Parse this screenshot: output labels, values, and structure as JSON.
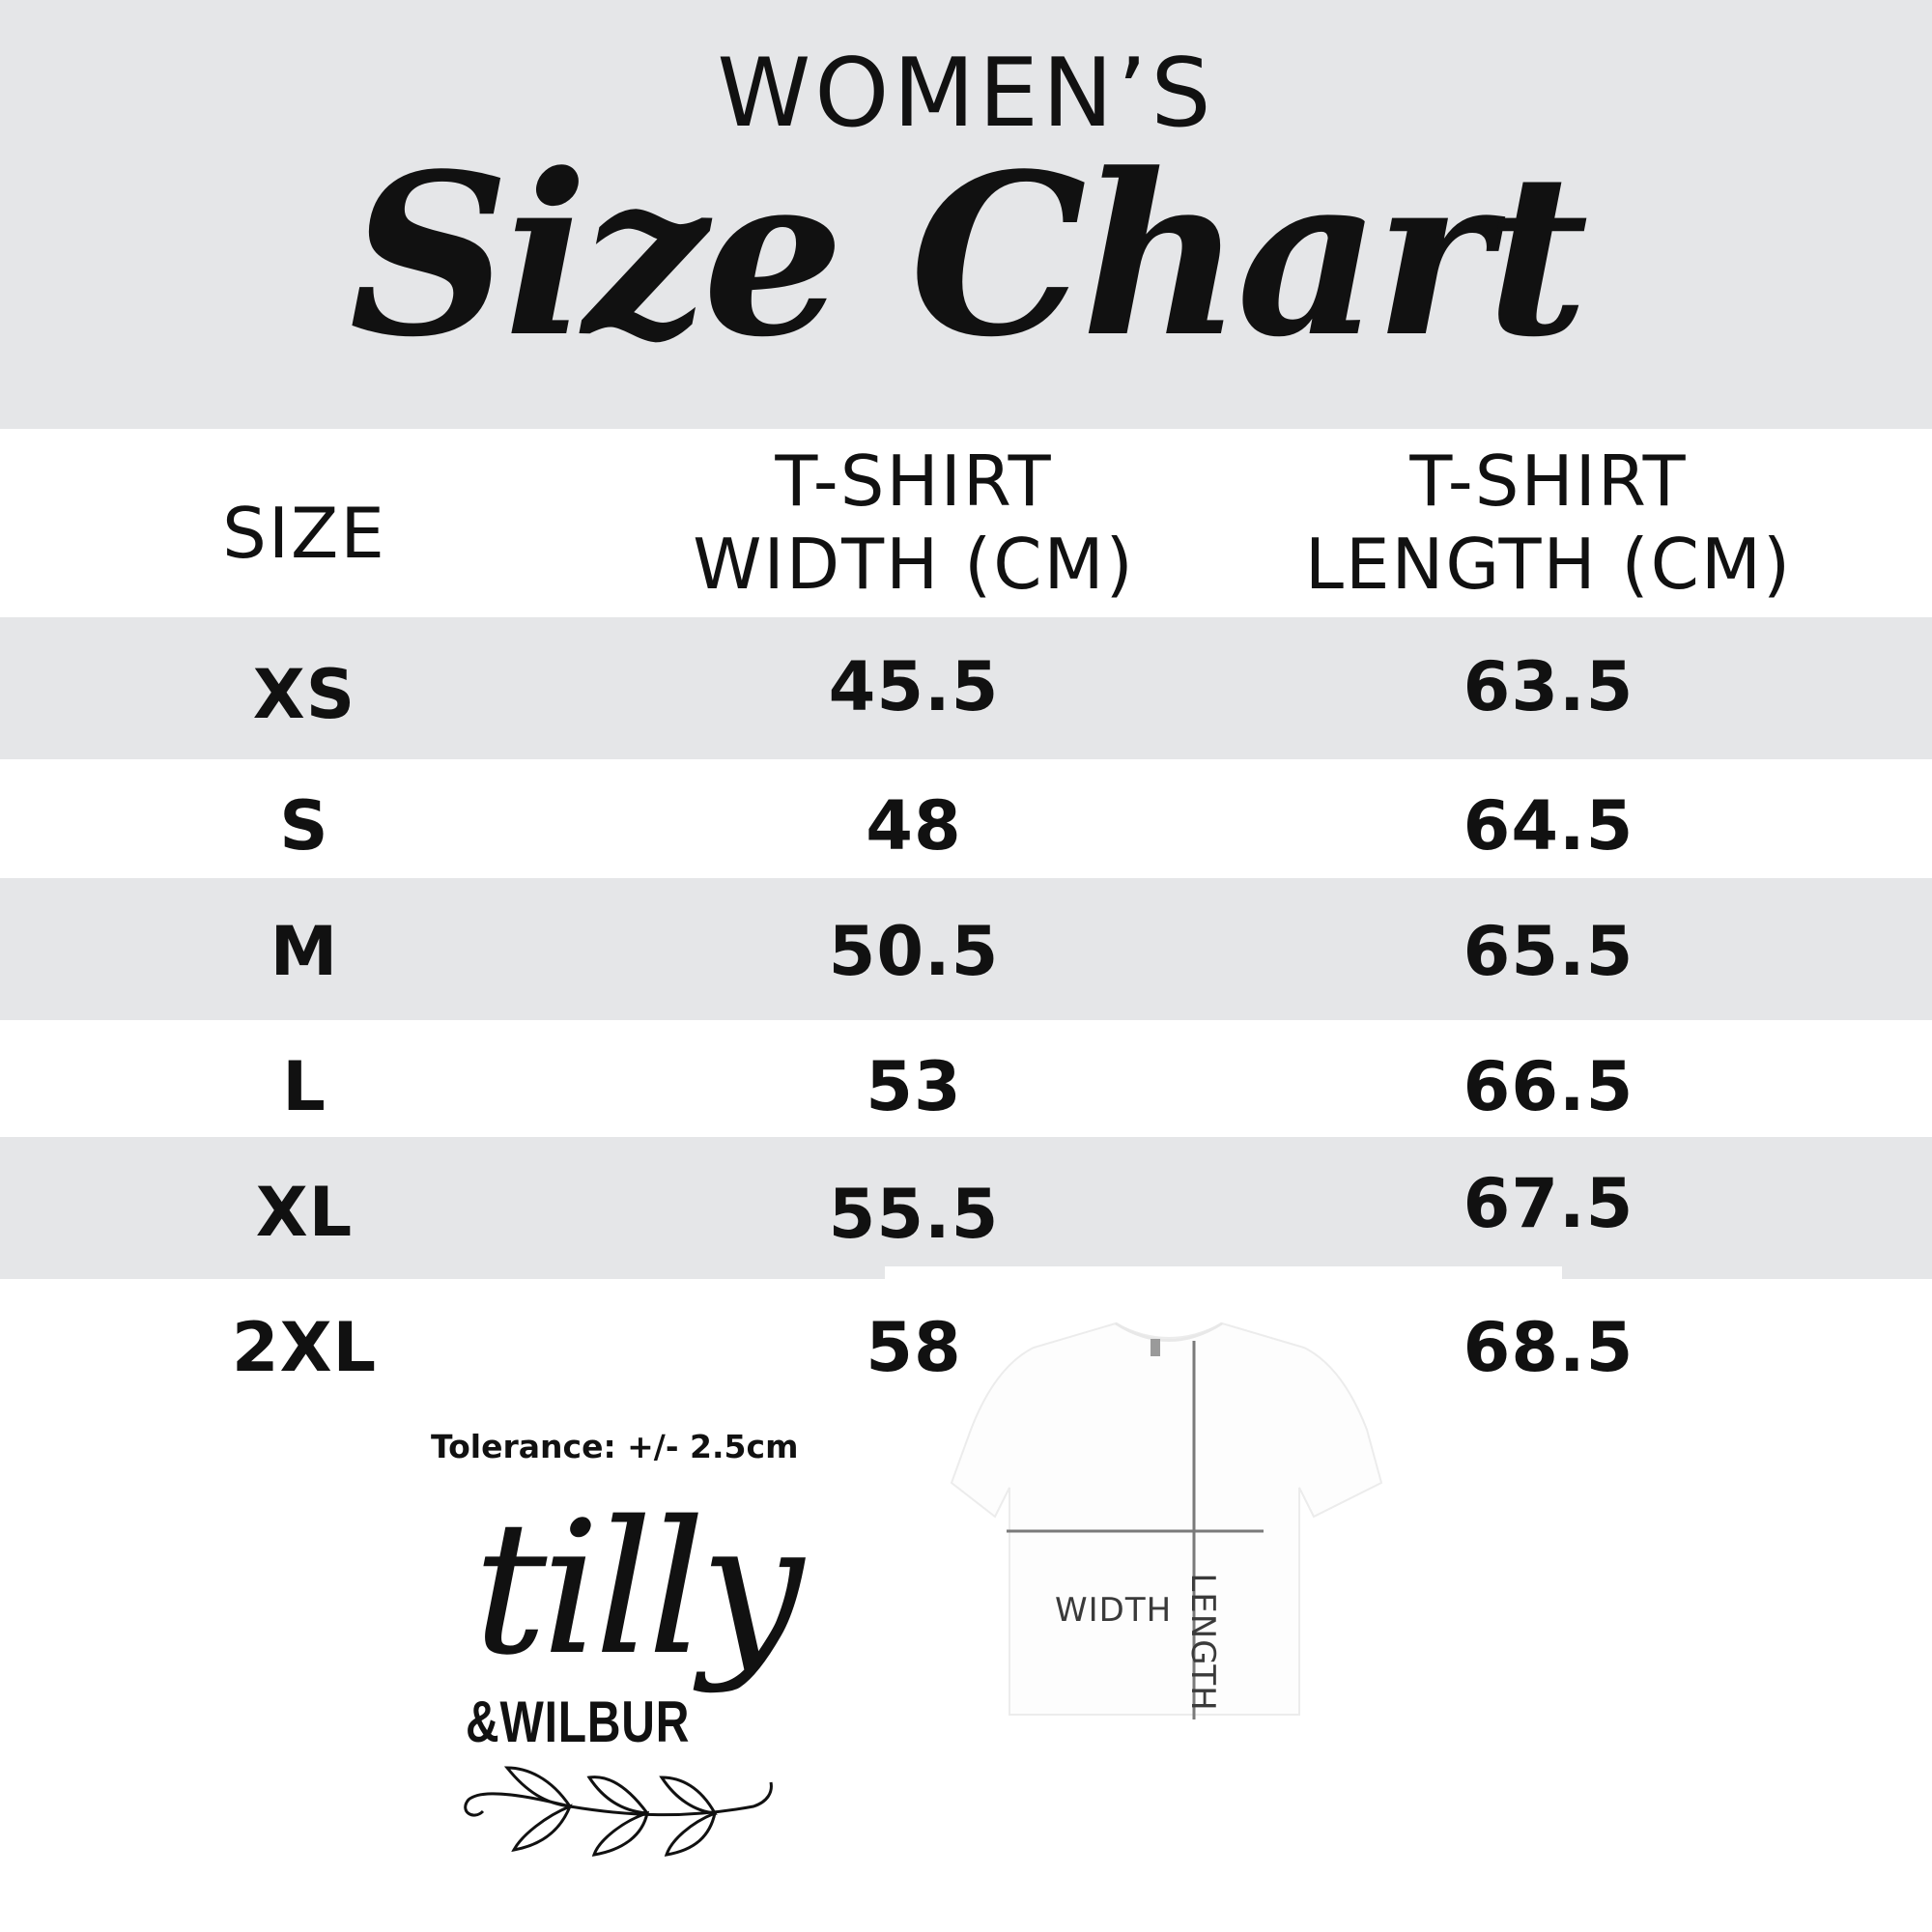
{
  "header": {
    "subtitle": "WOMEN’S",
    "title": "Size Chart"
  },
  "table": {
    "columns": [
      "SIZE",
      "T-SHIRT\nWIDTH (CM)",
      "T-SHIRT\nLENGTH (CM)"
    ],
    "column_lines": [
      [
        "SIZE"
      ],
      [
        "T-SHIRT",
        "WIDTH (CM)"
      ],
      [
        "T-SHIRT",
        "LENGTH (CM)"
      ]
    ],
    "rows": [
      {
        "size": "XS",
        "width": "45.5",
        "length": "63.5"
      },
      {
        "size": "S",
        "width": "48",
        "length": "64.5"
      },
      {
        "size": "M",
        "width": "50.5",
        "length": "65.5"
      },
      {
        "size": "L",
        "width": "53",
        "length": "66.5"
      },
      {
        "size": "XL",
        "width": "55.5",
        "length": "67.5"
      },
      {
        "size": "2XL",
        "width": "58",
        "length": "68.5"
      }
    ]
  },
  "tolerance": "Tolerance: +/- 2.5cm",
  "diagram": {
    "width_label": "WIDTH",
    "length_label": "LENGTH"
  },
  "logo": {
    "line1": "tilly",
    "line2": "&WILBUR"
  },
  "colors": {
    "band_gray": "#e5e6e8",
    "text": "#111111",
    "measure_line": "#7a7a7a"
  }
}
